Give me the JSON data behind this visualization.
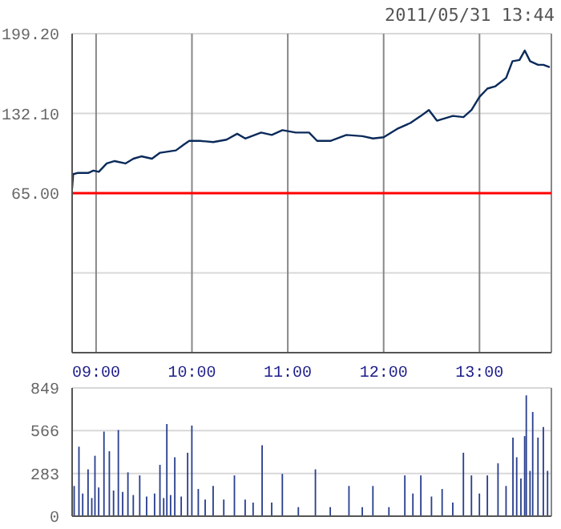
{
  "chart_data": [
    {
      "type": "line",
      "title": "2011/05/31 13:44",
      "x": [
        8.75,
        8.761,
        8.806,
        8.917,
        8.972,
        9.028,
        9.111,
        9.194,
        9.306,
        9.389,
        9.472,
        9.583,
        9.667,
        9.833,
        9.917,
        9.972,
        10.083,
        10.222,
        10.361,
        10.472,
        10.556,
        10.722,
        10.833,
        10.944,
        11.083,
        11.222,
        11.306,
        11.444,
        11.611,
        11.778,
        11.889,
        12.0,
        12.139,
        12.278,
        12.389,
        12.472,
        12.556,
        12.722,
        12.833,
        12.917,
        13.0,
        13.083,
        13.167,
        13.278,
        13.344,
        13.417,
        13.472,
        13.528,
        13.611,
        13.667,
        13.733
      ],
      "series": [
        {
          "color": "#0a2a5a",
          "values": [
            69,
            81,
            82,
            82,
            84,
            83,
            90,
            92,
            90,
            94,
            96,
            94,
            99,
            101,
            106,
            109,
            109,
            108,
            110,
            115,
            111,
            116,
            114,
            118,
            116,
            116,
            109,
            109,
            114,
            113,
            111,
            112,
            119,
            124,
            130,
            135,
            126,
            130,
            129,
            135,
            146,
            153,
            155,
            162,
            176,
            177,
            185,
            176,
            173,
            173,
            171
          ]
        }
      ],
      "xlim": [
        8.75,
        13.75
      ],
      "xticks": [
        {
          "value": 9,
          "label": "09:00"
        },
        {
          "value": 10,
          "label": "10:00"
        },
        {
          "value": 11,
          "label": "11:00"
        },
        {
          "value": 12,
          "label": "12:00"
        },
        {
          "value": 13,
          "label": "13:00"
        }
      ],
      "ylim": [
        -69.2,
        199.2
      ],
      "yticks": [
        {
          "value": -2.1,
          "label": null
        },
        {
          "value": 65,
          "label": "65.00"
        },
        {
          "value": 132.1,
          "label": "132.10"
        },
        {
          "value": 199.2,
          "label": "199.20"
        }
      ],
      "ref_lines": [
        {
          "axis": "y",
          "value": 65,
          "color": "#ff0000"
        }
      ],
      "grid": true,
      "marker": "none"
    },
    {
      "type": "bar",
      "x": [
        8.772,
        8.822,
        8.861,
        8.917,
        8.956,
        8.989,
        9.028,
        9.083,
        9.139,
        9.183,
        9.233,
        9.278,
        9.333,
        9.389,
        9.456,
        9.528,
        9.611,
        9.667,
        9.706,
        9.739,
        9.778,
        9.822,
        9.889,
        9.956,
        10.0,
        10.067,
        10.139,
        10.222,
        10.333,
        10.444,
        10.556,
        10.639,
        10.733,
        10.833,
        10.944,
        11.111,
        11.289,
        11.444,
        11.639,
        11.778,
        11.889,
        12.056,
        12.222,
        12.306,
        12.389,
        12.5,
        12.611,
        12.722,
        12.833,
        12.917,
        13.0,
        13.083,
        13.194,
        13.278,
        13.35,
        13.389,
        13.433,
        13.472,
        13.489,
        13.528,
        13.556,
        13.611,
        13.667,
        13.711
      ],
      "series": [
        {
          "color": "#2a3f8f",
          "values": [
            200,
            460,
            150,
            310,
            120,
            400,
            190,
            560,
            430,
            170,
            570,
            160,
            290,
            140,
            270,
            130,
            150,
            340,
            120,
            610,
            140,
            390,
            130,
            420,
            600,
            180,
            110,
            200,
            110,
            270,
            110,
            90,
            470,
            90,
            280,
            60,
            310,
            60,
            200,
            60,
            200,
            60,
            270,
            150,
            270,
            130,
            180,
            90,
            420,
            270,
            150,
            270,
            350,
            200,
            520,
            390,
            250,
            530,
            800,
            300,
            690,
            520,
            590,
            300
          ]
        }
      ],
      "xlim": [
        8.75,
        13.75
      ],
      "xticks": [
        {
          "value": 9,
          "label": null
        },
        {
          "value": 10,
          "label": null
        },
        {
          "value": 11,
          "label": null
        },
        {
          "value": 12,
          "label": null
        },
        {
          "value": 13,
          "label": null
        }
      ],
      "ylim": [
        0,
        849
      ],
      "yticks": [
        0,
        283,
        566,
        849
      ],
      "tick_labels": "y",
      "grid": true
    }
  ]
}
